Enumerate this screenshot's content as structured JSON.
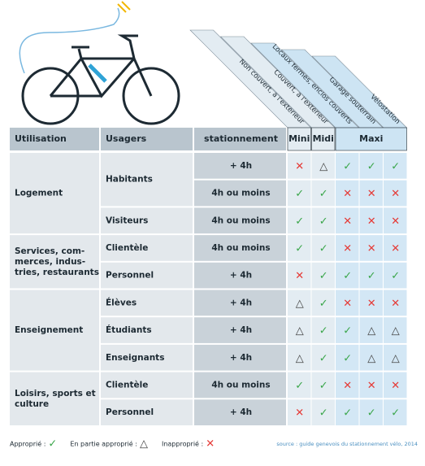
{
  "legend": [
    {
      "label": "Approprié :",
      "symbol": "✓",
      "color": "#3aa64a"
    },
    {
      "label": "En partie approprié :",
      "symbol": "△",
      "color": "#444444"
    },
    {
      "label": "Inapproprié :",
      "symbol": "✕",
      "color": "#e53935"
    }
  ],
  "source": "source : guide genevois du stationnement vélo, 2014",
  "column_labels": [
    "Non couvert, à l'extérieur",
    "Couvert, à l'extérieur",
    "Locaux fermés, enclos couverts",
    "Garage souterrain",
    "Vélostation"
  ],
  "table": {
    "headers": [
      "Utilisation",
      "Usagers",
      "stationnement"
    ],
    "sizes": [
      {
        "label": "Mini",
        "span": 1
      },
      {
        "label": "Midi",
        "span": 1
      },
      {
        "label": "Maxi",
        "span": 3
      }
    ],
    "groups": [
      {
        "name": [
          "Logement"
        ],
        "users": [
          {
            "name": "Habitants",
            "rows": [
              {
                "duration": "+ 4h",
                "ratings": [
                  "✕",
                  "△",
                  "✓",
                  "✓",
                  "✓"
                ]
              },
              {
                "duration": "4h ou moins",
                "ratings": [
                  "✓",
                  "✓",
                  "✕",
                  "✕",
                  "✕"
                ]
              }
            ]
          },
          {
            "name": "Visiteurs",
            "rows": [
              {
                "duration": "4h ou moins",
                "ratings": [
                  "✓",
                  "✓",
                  "✕",
                  "✕",
                  "✕"
                ]
              }
            ]
          }
        ]
      },
      {
        "name": [
          "Services, com-",
          "merces, indus-",
          "tries, restaurants"
        ],
        "users": [
          {
            "name": "Clientèle",
            "rows": [
              {
                "duration": "4h ou moins",
                "ratings": [
                  "✓",
                  "✓",
                  "✕",
                  "✕",
                  "✕"
                ]
              }
            ]
          },
          {
            "name": "Personnel",
            "rows": [
              {
                "duration": "+ 4h",
                "ratings": [
                  "✕",
                  "✓",
                  "✓",
                  "✓",
                  "✓"
                ]
              }
            ]
          }
        ]
      },
      {
        "name": [
          "Enseignement"
        ],
        "users": [
          {
            "name": "Élèves",
            "rows": [
              {
                "duration": "+ 4h",
                "ratings": [
                  "△",
                  "✓",
                  "✕",
                  "✕",
                  "✕"
                ]
              }
            ]
          },
          {
            "name": "Étudiants",
            "rows": [
              {
                "duration": "+ 4h",
                "ratings": [
                  "△",
                  "✓",
                  "✓",
                  "△",
                  "△"
                ]
              }
            ]
          },
          {
            "name": "Enseignants",
            "rows": [
              {
                "duration": "+ 4h",
                "ratings": [
                  "△",
                  "✓",
                  "✓",
                  "△",
                  "△"
                ]
              }
            ]
          }
        ]
      },
      {
        "name": [
          "Loisirs, sports et",
          "culture"
        ],
        "users": [
          {
            "name": "Clientèle",
            "rows": [
              {
                "duration": "4h ou moins",
                "ratings": [
                  "✓",
                  "✓",
                  "✕",
                  "✕",
                  "✕"
                ]
              }
            ]
          },
          {
            "name": "Personnel",
            "rows": [
              {
                "duration": "+ 4h",
                "ratings": [
                  "✕",
                  "✓",
                  "✓",
                  "✓",
                  "✓"
                ]
              }
            ]
          }
        ]
      }
    ]
  }
}
